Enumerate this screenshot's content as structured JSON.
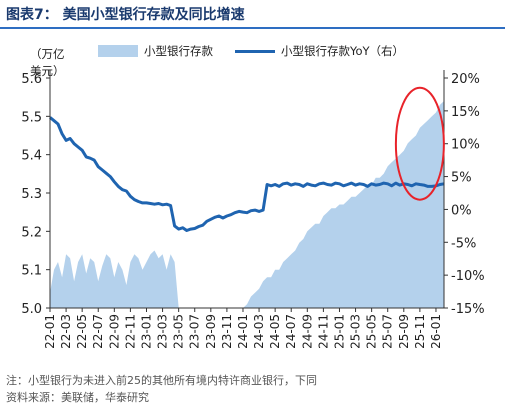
{
  "figure": {
    "title": "图表7：  美国小型银行存款及同比增速",
    "unit_label": "（万亿美元）",
    "note": "注：小型银行为未进入前25的其他所有境内特许商业银行，下同",
    "source": "资料来源：美联储，华泰研究"
  },
  "colors": {
    "area": "#b4d1ec",
    "line": "#1f64b0",
    "highlight": "#e8232a",
    "title": "#1a3a6e"
  },
  "chart_data": {
    "type": "area",
    "legend": [
      "小型银行存款",
      "小型银行存款YoY（右）"
    ],
    "legend_position": "top",
    "grid": false,
    "x_tick_labels": [
      "22-01",
      "22-03",
      "22-05",
      "22-07",
      "22-09",
      "22-11",
      "23-01",
      "23-03",
      "23-05",
      "23-07",
      "23-09",
      "23-11",
      "24-01",
      "24-03",
      "24-05",
      "24-07",
      "24-09",
      "24-11",
      "25-01",
      "25-03",
      "25-05",
      "25-07",
      "25-09",
      "25-11",
      "26-01"
    ],
    "y_left": {
      "lim": [
        5.0,
        5.6
      ],
      "ticks": [
        "5.0",
        "5.1",
        "5.2",
        "5.3",
        "5.4",
        "5.5",
        "5.6"
      ]
    },
    "y_right": {
      "lim": [
        -15,
        20
      ],
      "ticks": [
        "-15%",
        "-10%",
        "-5%",
        "0%",
        "5%",
        "10%",
        "15%",
        "20%"
      ]
    },
    "series": [
      {
        "name": "小型银行存款",
        "axis": "left",
        "x": [
          0,
          0.5,
          1,
          1.5,
          2,
          2.5,
          3,
          3.5,
          4,
          4.5,
          5,
          5.5,
          6,
          6.5,
          7,
          7.5,
          8,
          8.5,
          9,
          9.5,
          10,
          10.5,
          11,
          11.5,
          12,
          12.5,
          13,
          13.5,
          14,
          14.5,
          15,
          15.5,
          16,
          16.5,
          17,
          17.5,
          18,
          18.5,
          19,
          19.5,
          20,
          20.5,
          21,
          21.5,
          22,
          22.5,
          23,
          23.5,
          24,
          24.5,
          25,
          25.5,
          26,
          26.5,
          27,
          27.5,
          28,
          28.5,
          29,
          29.5,
          30,
          30.5,
          31,
          31.5,
          32,
          32.5,
          33,
          33.5,
          34,
          34.5,
          35,
          35.5,
          36,
          36.5,
          37,
          37.5,
          38,
          38.5,
          39,
          39.5,
          40,
          40.5,
          41,
          41.5,
          42,
          42.5,
          43,
          43.5,
          44,
          44.5,
          45,
          45.5,
          46,
          46.5,
          47,
          47.5,
          48,
          48.5,
          49
        ],
        "values": [
          5.04,
          5.1,
          5.12,
          5.08,
          5.14,
          5.13,
          5.07,
          5.12,
          5.14,
          5.09,
          5.13,
          5.12,
          5.07,
          5.11,
          5.14,
          5.13,
          5.08,
          5.12,
          5.1,
          5.06,
          5.12,
          5.14,
          5.13,
          5.1,
          5.12,
          5.14,
          5.15,
          5.13,
          5.14,
          5.1,
          5.14,
          5.12,
          5.0,
          5.0,
          5.0,
          5.0,
          5.0,
          5.0,
          5.0,
          5.0,
          5.0,
          5.0,
          5.0,
          5.0,
          5.0,
          5.0,
          5.0,
          5.0,
          5.0,
          5.01,
          5.03,
          5.04,
          5.05,
          5.07,
          5.08,
          5.08,
          5.1,
          5.1,
          5.12,
          5.13,
          5.14,
          5.15,
          5.17,
          5.18,
          5.2,
          5.21,
          5.22,
          5.22,
          5.24,
          5.25,
          5.26,
          5.26,
          5.27,
          5.27,
          5.28,
          5.29,
          5.29,
          5.3,
          5.31,
          5.32,
          5.32,
          5.34,
          5.34,
          5.35,
          5.37,
          5.38,
          5.39,
          5.4,
          5.41,
          5.43,
          5.44,
          5.45,
          5.47,
          5.48,
          5.49,
          5.5,
          5.51,
          5.53,
          5.54
        ]
      },
      {
        "name": "小型银行存款YoY（右）",
        "axis": "right",
        "x": [
          0,
          0.5,
          1,
          1.5,
          2,
          2.5,
          3,
          3.5,
          4,
          4.5,
          5,
          5.5,
          6,
          6.5,
          7,
          7.5,
          8,
          8.5,
          9,
          9.5,
          10,
          10.5,
          11,
          11.5,
          12,
          12.5,
          13,
          13.5,
          14,
          14.5,
          15,
          15.5,
          16,
          16.5,
          17,
          17.5,
          18,
          18.5,
          19,
          19.5,
          20,
          20.5,
          21,
          21.5,
          22,
          22.5,
          23,
          23.5,
          24,
          24.5,
          25,
          25.5,
          26,
          26.5,
          27,
          27.5,
          28,
          28.5,
          29,
          29.5,
          30,
          30.5,
          31,
          31.5,
          32,
          32.5,
          33,
          33.5,
          34,
          34.5,
          35,
          35.5,
          36,
          36.5,
          37,
          37.5,
          38,
          38.5,
          39,
          39.5,
          40,
          40.5,
          41,
          41.5,
          42,
          42.5,
          43,
          43.5,
          44,
          44.5,
          45,
          45.5,
          46,
          46.5,
          47,
          47.5,
          48,
          48.5,
          49
        ],
        "values": [
          14.0,
          13.5,
          13.0,
          11.5,
          10.5,
          10.8,
          10.0,
          9.5,
          9.0,
          8.0,
          7.8,
          7.5,
          6.5,
          6.0,
          5.5,
          5.0,
          4.2,
          3.5,
          3.0,
          2.8,
          2.0,
          1.5,
          1.2,
          1.0,
          1.0,
          0.9,
          0.8,
          0.9,
          0.7,
          0.8,
          0.6,
          -2.5,
          -3.0,
          -2.8,
          -3.2,
          -3.0,
          -2.9,
          -2.6,
          -2.4,
          -1.8,
          -1.5,
          -1.2,
          -1.0,
          -1.3,
          -1.0,
          -0.8,
          -0.5,
          -0.3,
          -0.4,
          -0.5,
          -0.2,
          -0.1,
          -0.3,
          -0.1,
          3.8,
          3.6,
          3.8,
          3.5,
          3.9,
          4.0,
          3.7,
          3.9,
          3.8,
          3.5,
          3.9,
          3.7,
          3.6,
          3.9,
          4.0,
          3.8,
          3.7,
          4.0,
          3.9,
          3.6,
          3.8,
          4.0,
          3.7,
          3.9,
          3.8,
          3.5,
          3.9,
          3.7,
          3.8,
          4.0,
          3.9,
          3.6,
          4.0,
          3.7,
          3.9,
          3.8,
          3.6,
          3.9,
          3.8,
          3.7,
          3.5,
          3.5,
          3.6,
          3.8,
          3.9
        ]
      }
    ],
    "annotation": "red ellipse around recent months (25-11 to 26-01)"
  }
}
